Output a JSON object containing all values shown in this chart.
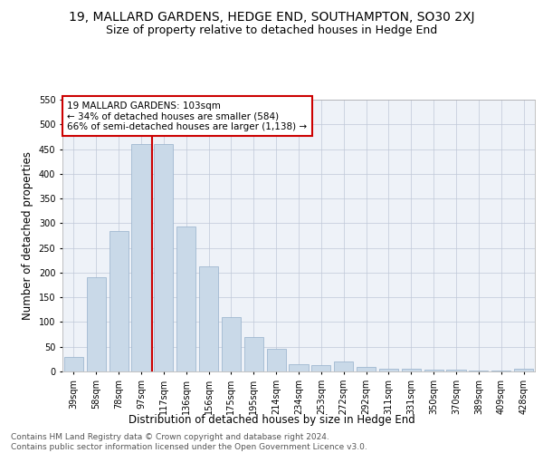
{
  "title": "19, MALLARD GARDENS, HEDGE END, SOUTHAMPTON, SO30 2XJ",
  "subtitle": "Size of property relative to detached houses in Hedge End",
  "xlabel": "Distribution of detached houses by size in Hedge End",
  "ylabel": "Number of detached properties",
  "categories": [
    "39sqm",
    "58sqm",
    "78sqm",
    "97sqm",
    "117sqm",
    "136sqm",
    "156sqm",
    "175sqm",
    "195sqm",
    "214sqm",
    "234sqm",
    "253sqm",
    "272sqm",
    "292sqm",
    "311sqm",
    "331sqm",
    "350sqm",
    "370sqm",
    "389sqm",
    "409sqm",
    "428sqm"
  ],
  "values": [
    30,
    190,
    285,
    460,
    460,
    293,
    212,
    110,
    70,
    46,
    15,
    13,
    20,
    10,
    6,
    5,
    4,
    3,
    2,
    2,
    5
  ],
  "bar_color": "#c9d9e8",
  "bar_edge_color": "#a0b8d0",
  "vline_x_idx": 3,
  "vline_color": "#cc0000",
  "annotation_text": "19 MALLARD GARDENS: 103sqm\n← 34% of detached houses are smaller (584)\n66% of semi-detached houses are larger (1,138) →",
  "annotation_box_color": "#ffffff",
  "annotation_box_edge": "#cc0000",
  "ylim": [
    0,
    550
  ],
  "yticks": [
    0,
    50,
    100,
    150,
    200,
    250,
    300,
    350,
    400,
    450,
    500,
    550
  ],
  "grid_color": "#c0c8d8",
  "bg_color": "#eef2f8",
  "footnote": "Contains HM Land Registry data © Crown copyright and database right 2024.\nContains public sector information licensed under the Open Government Licence v3.0.",
  "title_fontsize": 10,
  "subtitle_fontsize": 9,
  "xlabel_fontsize": 8.5,
  "ylabel_fontsize": 8.5,
  "tick_fontsize": 7,
  "annotation_fontsize": 7.5,
  "footnote_fontsize": 6.5
}
